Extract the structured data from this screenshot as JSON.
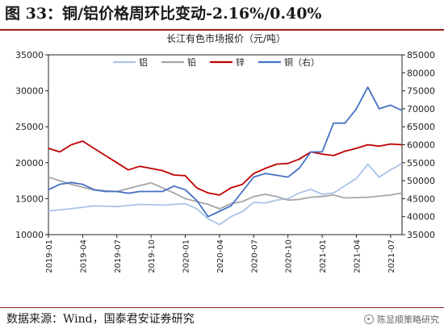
{
  "figure": {
    "title": "图 33：铜/铝价格周环比变动-2.16%/0.40%"
  },
  "source": "数据来源：Wind，国泰君安证券研究",
  "watermark": "陈显顺策略研究",
  "chart_data": {
    "type": "line",
    "title": "长江有色市场报价（元/吨）",
    "grid": false,
    "legend_position": "top",
    "x_ticks": [
      "2019-01",
      "2019-04",
      "2019-07",
      "2019-10",
      "2020-01",
      "2020-04",
      "2020-07",
      "2020-10",
      "2021-01",
      "2021-04",
      "2021-07"
    ],
    "x_range": [
      "2019-01",
      "2021-08"
    ],
    "y_left": {
      "min": 10000,
      "max": 35000,
      "ticks": [
        10000,
        15000,
        20000,
        25000,
        30000,
        35000
      ]
    },
    "y_right": {
      "min": 35000,
      "max": 85000,
      "ticks": [
        35000,
        40000,
        45000,
        50000,
        55000,
        60000,
        65000,
        70000,
        75000,
        80000,
        85000
      ]
    },
    "series": [
      {
        "name": "铝",
        "axis": "left",
        "color": "#a9c4e6",
        "points": [
          [
            "2019-01",
            13300
          ],
          [
            "2019-03",
            13600
          ],
          [
            "2019-05",
            14000
          ],
          [
            "2019-07",
            13900
          ],
          [
            "2019-09",
            14200
          ],
          [
            "2019-11",
            14100
          ],
          [
            "2020-01",
            14300
          ],
          [
            "2020-02",
            13600
          ],
          [
            "2020-03",
            12200
          ],
          [
            "2020-04",
            11400
          ],
          [
            "2020-05",
            12500
          ],
          [
            "2020-06",
            13200
          ],
          [
            "2020-07",
            14500
          ],
          [
            "2020-08",
            14400
          ],
          [
            "2020-09",
            14800
          ],
          [
            "2020-10",
            15000
          ],
          [
            "2020-11",
            15800
          ],
          [
            "2020-12",
            16300
          ],
          [
            "2021-01",
            15600
          ],
          [
            "2021-02",
            15800
          ],
          [
            "2021-03",
            16800
          ],
          [
            "2021-04",
            17800
          ],
          [
            "2021-05",
            19800
          ],
          [
            "2021-06",
            18000
          ],
          [
            "2021-07",
            19000
          ],
          [
            "2021-08",
            19900
          ]
        ]
      },
      {
        "name": "铅",
        "axis": "left",
        "color": "#a6a6a6",
        "points": [
          [
            "2019-01",
            18000
          ],
          [
            "2019-03",
            17000
          ],
          [
            "2019-05",
            16200
          ],
          [
            "2019-07",
            16000
          ],
          [
            "2019-09",
            16800
          ],
          [
            "2019-10",
            17200
          ],
          [
            "2019-12",
            15800
          ],
          [
            "2020-01",
            15000
          ],
          [
            "2020-03",
            14200
          ],
          [
            "2020-04",
            13600
          ],
          [
            "2020-05",
            14300
          ],
          [
            "2020-06",
            14600
          ],
          [
            "2020-07",
            15300
          ],
          [
            "2020-08",
            15600
          ],
          [
            "2020-09",
            15300
          ],
          [
            "2020-10",
            14800
          ],
          [
            "2020-11",
            14900
          ],
          [
            "2020-12",
            15200
          ],
          [
            "2021-01",
            15300
          ],
          [
            "2021-02",
            15500
          ],
          [
            "2021-03",
            15100
          ],
          [
            "2021-05",
            15200
          ],
          [
            "2021-07",
            15500
          ],
          [
            "2021-08",
            15800
          ]
        ]
      },
      {
        "name": "锌",
        "axis": "left",
        "color": "#c00000",
        "points": [
          [
            "2019-01",
            22000
          ],
          [
            "2019-02",
            21500
          ],
          [
            "2019-03",
            22500
          ],
          [
            "2019-04",
            23000
          ],
          [
            "2019-05",
            22000
          ],
          [
            "2019-06",
            21000
          ],
          [
            "2019-07",
            20000
          ],
          [
            "2019-08",
            19000
          ],
          [
            "2019-09",
            19500
          ],
          [
            "2019-10",
            19200
          ],
          [
            "2019-11",
            18900
          ],
          [
            "2019-12",
            18300
          ],
          [
            "2020-01",
            18200
          ],
          [
            "2020-02",
            16500
          ],
          [
            "2020-03",
            15800
          ],
          [
            "2020-04",
            15500
          ],
          [
            "2020-05",
            16500
          ],
          [
            "2020-06",
            17000
          ],
          [
            "2020-07",
            18500
          ],
          [
            "2020-08",
            19200
          ],
          [
            "2020-09",
            19800
          ],
          [
            "2020-10",
            19900
          ],
          [
            "2020-11",
            20500
          ],
          [
            "2020-12",
            21500
          ],
          [
            "2021-01",
            21200
          ],
          [
            "2021-02",
            21000
          ],
          [
            "2021-03",
            21600
          ],
          [
            "2021-04",
            22000
          ],
          [
            "2021-05",
            22500
          ],
          [
            "2021-06",
            22300
          ],
          [
            "2021-07",
            22600
          ],
          [
            "2021-08",
            22500
          ]
        ]
      },
      {
        "name": "铜（右）",
        "axis": "right",
        "color": "#4472c4",
        "points": [
          [
            "2019-01",
            47500
          ],
          [
            "2019-02",
            49000
          ],
          [
            "2019-03",
            49500
          ],
          [
            "2019-04",
            49000
          ],
          [
            "2019-05",
            47500
          ],
          [
            "2019-06",
            47000
          ],
          [
            "2019-07",
            47000
          ],
          [
            "2019-08",
            46500
          ],
          [
            "2019-09",
            47000
          ],
          [
            "2019-10",
            47000
          ],
          [
            "2019-11",
            47000
          ],
          [
            "2019-12",
            48500
          ],
          [
            "2020-01",
            47500
          ],
          [
            "2020-02",
            44500
          ],
          [
            "2020-03",
            40000
          ],
          [
            "2020-04",
            41500
          ],
          [
            "2020-05",
            43000
          ],
          [
            "2020-06",
            47000
          ],
          [
            "2020-07",
            51000
          ],
          [
            "2020-08",
            52000
          ],
          [
            "2020-09",
            51500
          ],
          [
            "2020-10",
            51000
          ],
          [
            "2020-11",
            53500
          ],
          [
            "2020-12",
            58000
          ],
          [
            "2021-01",
            58000
          ],
          [
            "2021-02",
            66000
          ],
          [
            "2021-03",
            66000
          ],
          [
            "2021-04",
            70000
          ],
          [
            "2021-05",
            76000
          ],
          [
            "2021-06",
            70000
          ],
          [
            "2021-07",
            71000
          ],
          [
            "2021-08",
            69500
          ]
        ]
      }
    ]
  }
}
